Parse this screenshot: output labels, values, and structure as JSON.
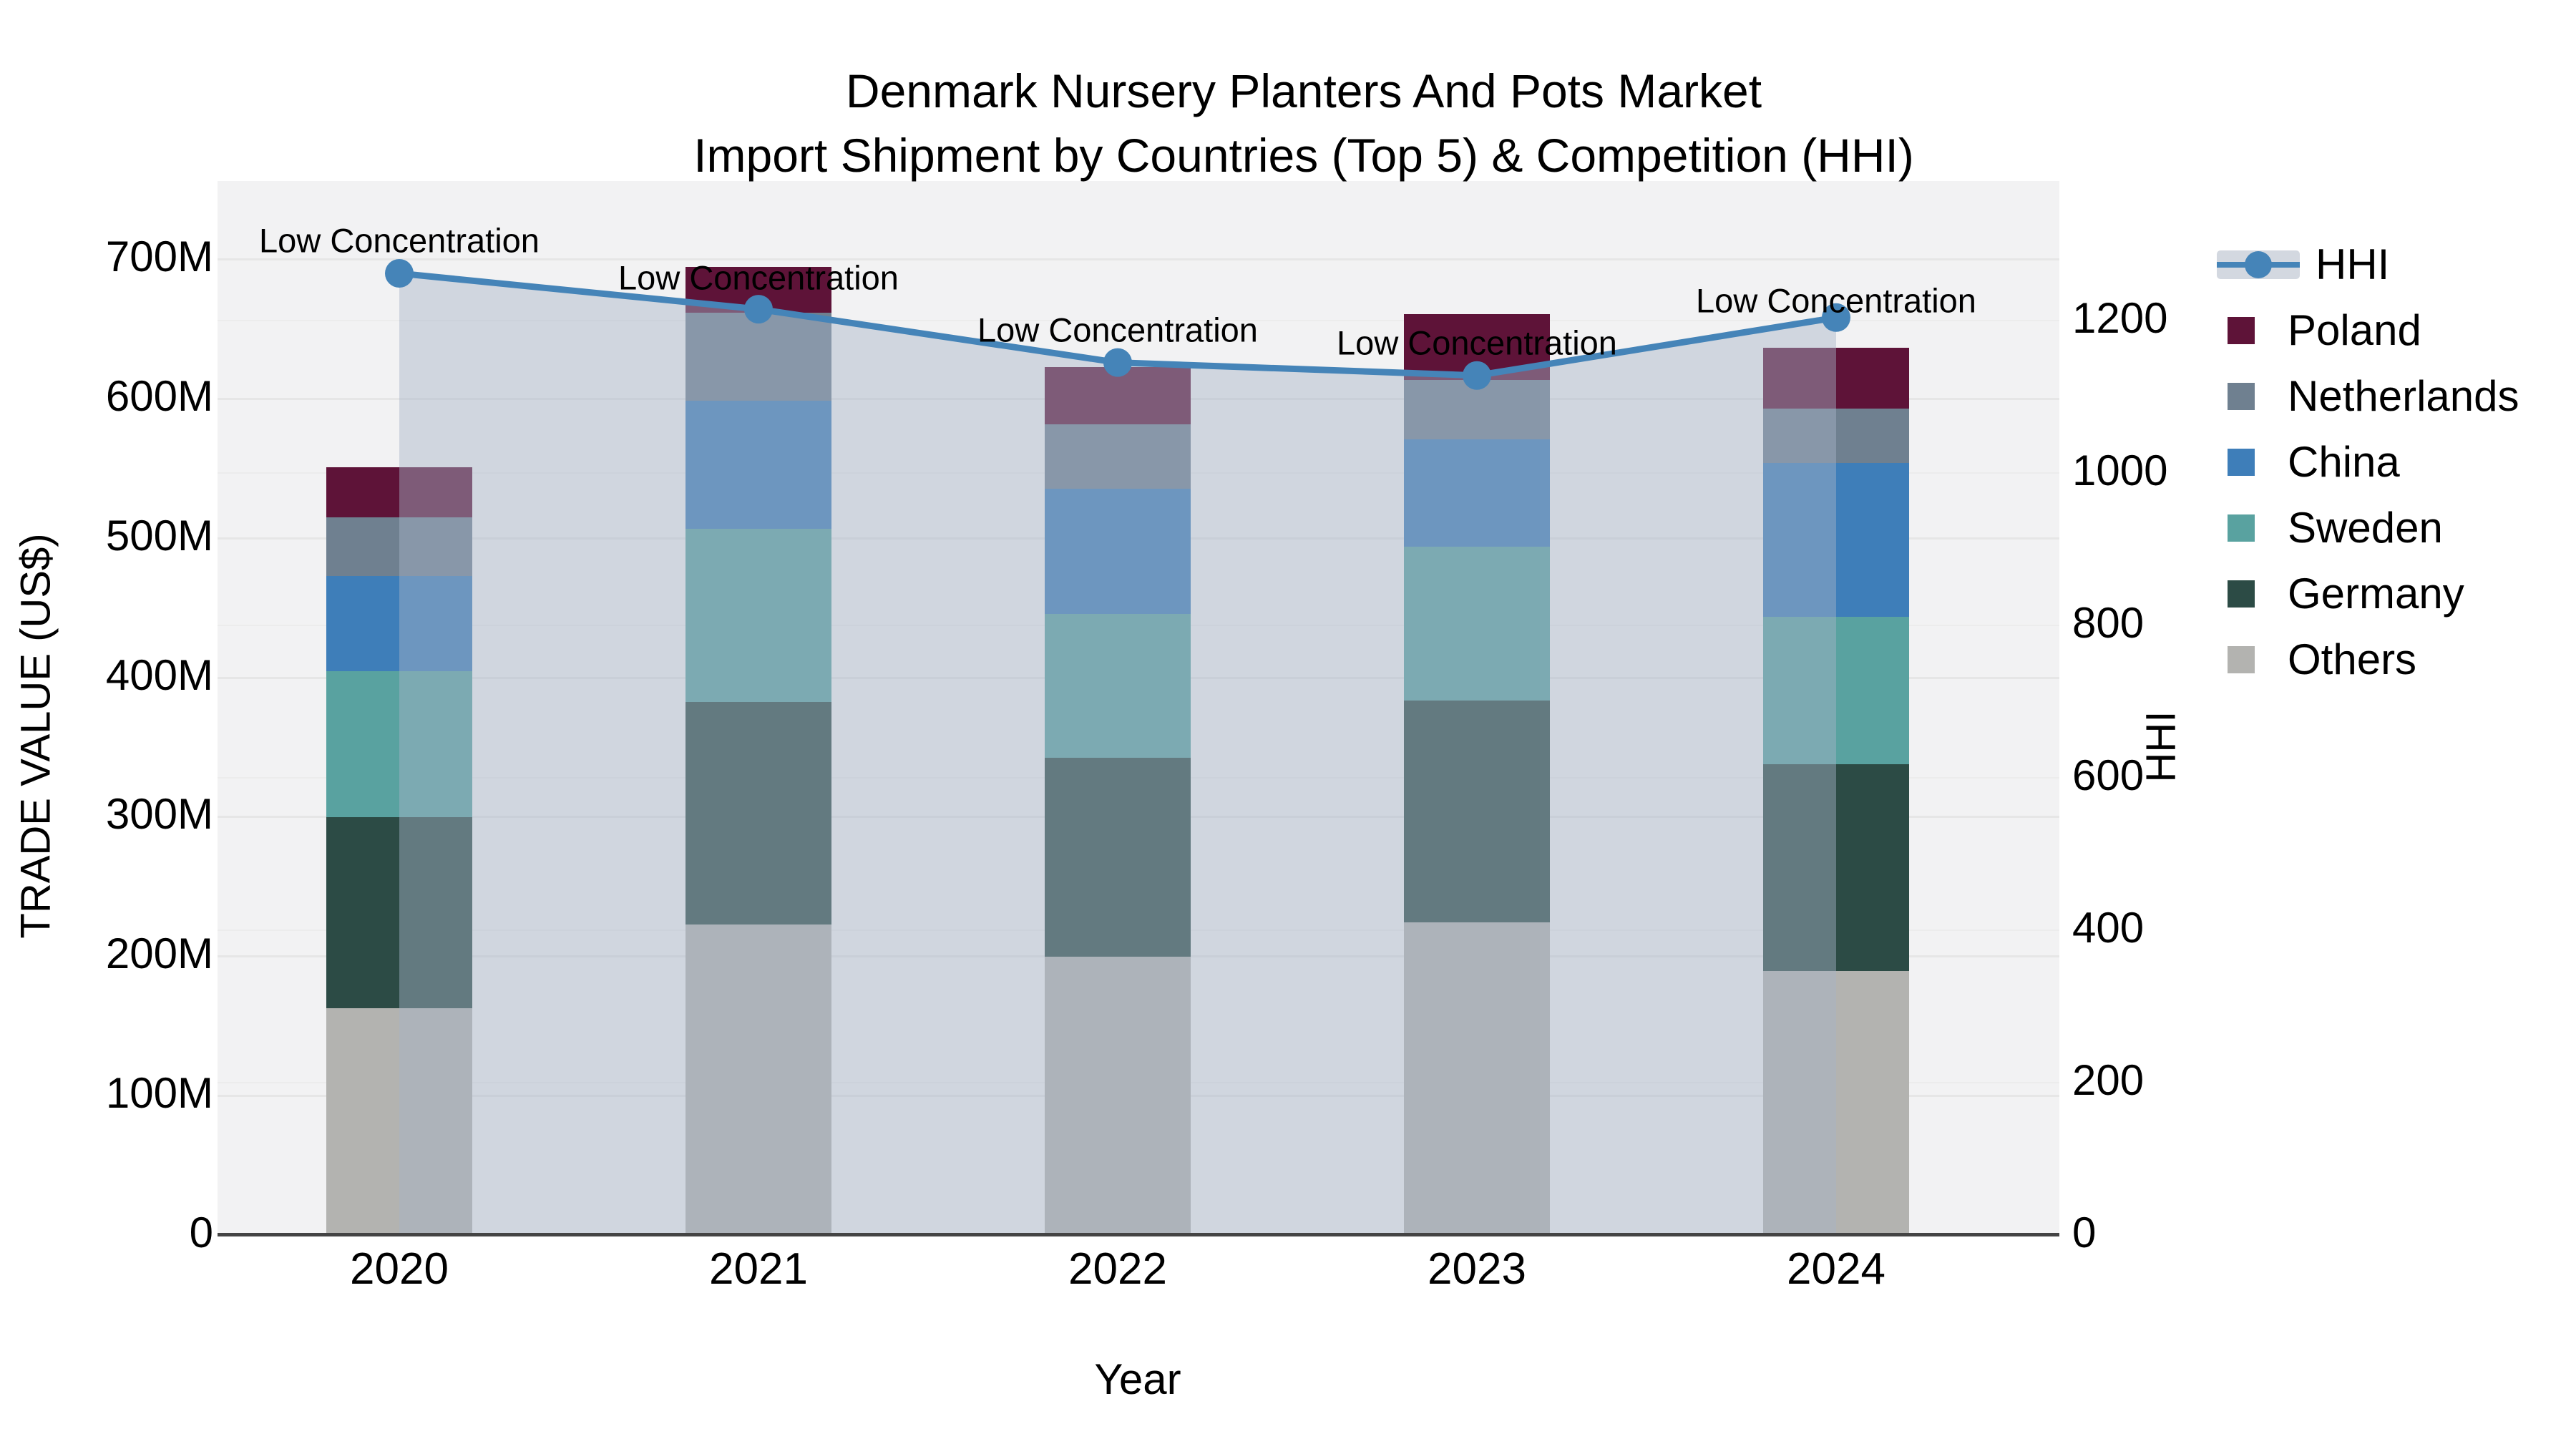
{
  "title": {
    "line1": "Denmark Nursery Planters And Pots Market",
    "line2": "Import Shipment by Countries (Top 5) & Competition (HHI)"
  },
  "axes": {
    "left_title": "TRADE VALUE (US$)",
    "left_ticks": [
      "0",
      "100M",
      "200M",
      "300M",
      "400M",
      "500M",
      "600M",
      "700M"
    ],
    "left_tick_values": [
      0,
      100,
      200,
      300,
      400,
      500,
      600,
      700
    ],
    "right_title": "HHI",
    "right_ticks": [
      "0",
      "200",
      "400",
      "600",
      "800",
      "1000",
      "1200"
    ],
    "right_tick_values": [
      0,
      200,
      400,
      600,
      800,
      1000,
      1200
    ],
    "x_title": "Year",
    "x_ticks": [
      "2020",
      "2021",
      "2022",
      "2023",
      "2024"
    ]
  },
  "annotation_text": "Low Concentration",
  "legend": [
    {
      "label": "HHI",
      "type": "line"
    },
    {
      "label": "Poland",
      "type": "swatch",
      "color": "#5E1338"
    },
    {
      "label": "Netherlands",
      "type": "swatch",
      "color": "#6F8090"
    },
    {
      "label": "China",
      "type": "swatch",
      "color": "#3E7EB9"
    },
    {
      "label": "Sweden",
      "type": "swatch",
      "color": "#59A2A0"
    },
    {
      "label": "Germany",
      "type": "swatch",
      "color": "#2C4B45"
    },
    {
      "label": "Others",
      "type": "swatch",
      "color": "#B3B3B0"
    }
  ],
  "colors": {
    "poland": "#5E1338",
    "netherlands": "#6F8090",
    "china": "#3E7EB9",
    "sweden": "#59A2A0",
    "germany": "#2C4B45",
    "others": "#B3B3B0",
    "hhi_line": "#4584B8",
    "area_fill": "rgba(167,180,199,0.45)",
    "plot_bg": "#F2F2F3",
    "grid": "#E6E6E6",
    "axis_line": "#444444"
  },
  "chart_data": {
    "type": "bar+line",
    "categories": [
      "2020",
      "2021",
      "2022",
      "2023",
      "2024"
    ],
    "bar_unit": "Million US$",
    "stack_order_bottom_to_top": [
      "Others",
      "Germany",
      "Sweden",
      "China",
      "Netherlands",
      "Poland"
    ],
    "series": [
      {
        "name": "Others",
        "values": [
          162,
          222,
          199,
          224,
          189
        ]
      },
      {
        "name": "Germany",
        "values": [
          137,
          160,
          143,
          159,
          148
        ]
      },
      {
        "name": "Sweden",
        "values": [
          105,
          124,
          103,
          110,
          106
        ]
      },
      {
        "name": "China",
        "values": [
          68,
          92,
          90,
          77,
          110
        ]
      },
      {
        "name": "Netherlands",
        "values": [
          42,
          63,
          46,
          43,
          39
        ]
      },
      {
        "name": "Poland",
        "values": [
          36,
          33,
          41,
          47,
          44
        ]
      }
    ],
    "bar_totals": [
      550,
      694,
      622,
      660,
      636
    ],
    "line_series": {
      "name": "HHI",
      "values": [
        1261,
        1214,
        1144,
        1127,
        1203
      ],
      "axis": "right"
    },
    "annotations_per_point": [
      "Low Concentration",
      "Low Concentration",
      "Low Concentration",
      "Low Concentration",
      "Low Concentration"
    ],
    "title": "Denmark Nursery Planters And Pots Market Import Shipment by Countries (Top 5) & Competition (HHI)",
    "xlabel": "Year",
    "ylabel_left": "TRADE VALUE (US$)",
    "ylabel_right": "HHI",
    "ylim_left": [
      0,
      700
    ],
    "ylim_right": [
      0,
      1200
    ],
    "grid": true,
    "legend_position": "right"
  }
}
